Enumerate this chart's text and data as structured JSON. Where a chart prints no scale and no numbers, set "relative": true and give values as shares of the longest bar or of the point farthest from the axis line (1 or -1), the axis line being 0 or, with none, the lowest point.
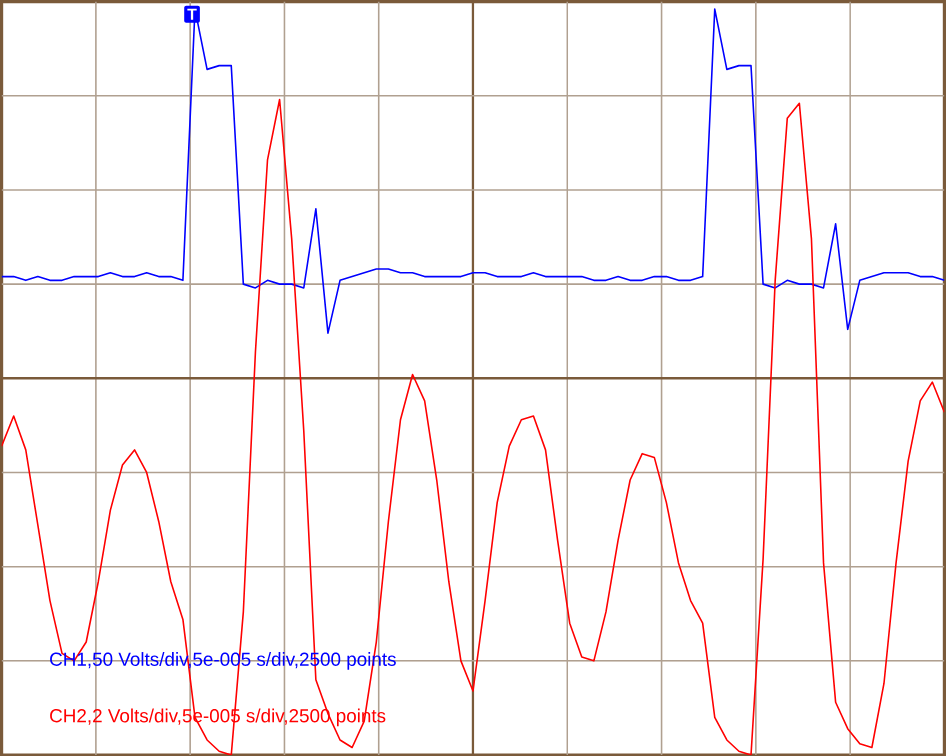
{
  "chart_data": {
    "type": "line",
    "relative": true,
    "grid": true,
    "categories": [
      null,
      null,
      null,
      null,
      null,
      null,
      null,
      null,
      null,
      null,
      null,
      null,
      null,
      null,
      null,
      null,
      null,
      null,
      null,
      null,
      null,
      null,
      null,
      null,
      null,
      null,
      null,
      null,
      null,
      null,
      null,
      null,
      null,
      null,
      null,
      null,
      null,
      null,
      null,
      null,
      null,
      null,
      null,
      null,
      null,
      null,
      null,
      null,
      null,
      null,
      null,
      null,
      null,
      null,
      null,
      null,
      null,
      null,
      null,
      null,
      null,
      null,
      null,
      null,
      null,
      null,
      null,
      null,
      null,
      null,
      null,
      null,
      null,
      null,
      null,
      null,
      null,
      null,
      null
    ],
    "series": [
      {
        "name": "CH1,50 Volts/div,5e-005 s/div,2500 points",
        "color": "#0000ff",
        "values": [
          0.27,
          0.27,
          0.26,
          0.27,
          0.26,
          0.26,
          0.27,
          0.27,
          0.27,
          0.28,
          0.27,
          0.27,
          0.28,
          0.27,
          0.27,
          0.26,
          0.98,
          0.82,
          0.83,
          0.83,
          0.25,
          0.24,
          0.26,
          0.25,
          0.25,
          0.24,
          0.45,
          0.12,
          0.26,
          0.27,
          0.28,
          0.29,
          0.29,
          0.28,
          0.28,
          0.27,
          0.27,
          0.27,
          0.27,
          0.28,
          0.28,
          0.27,
          0.27,
          0.27,
          0.28,
          0.27,
          0.27,
          0.27,
          0.27,
          0.26,
          0.26,
          0.27,
          0.26,
          0.26,
          0.27,
          0.27,
          0.26,
          0.26,
          0.27,
          0.98,
          0.82,
          0.83,
          0.83,
          0.25,
          0.24,
          0.26,
          0.25,
          0.25,
          0.24,
          0.41,
          0.13,
          0.26,
          0.27,
          0.28,
          0.28,
          0.28,
          0.27,
          0.27,
          0.26
        ]
      },
      {
        "name": "CH2,2 Volts/div,5e-005 s/div,2500 points",
        "color": "#ff0000",
        "values": [
          -0.18,
          -0.1,
          -0.19,
          -0.39,
          -0.59,
          -0.73,
          -0.75,
          -0.7,
          -0.54,
          -0.35,
          -0.23,
          -0.19,
          -0.25,
          -0.38,
          -0.54,
          -0.64,
          -0.9,
          -0.96,
          -0.99,
          -1.0,
          -0.62,
          0.07,
          0.58,
          0.74,
          0.37,
          -0.14,
          -0.8,
          -0.89,
          -0.96,
          -0.98,
          -0.91,
          -0.7,
          -0.38,
          -0.11,
          0.01,
          -0.06,
          -0.27,
          -0.54,
          -0.75,
          -0.83,
          -0.59,
          -0.33,
          -0.18,
          -0.11,
          -0.1,
          -0.19,
          -0.43,
          -0.65,
          -0.74,
          -0.75,
          -0.62,
          -0.43,
          -0.27,
          -0.2,
          -0.21,
          -0.33,
          -0.49,
          -0.59,
          -0.65,
          -0.9,
          -0.96,
          -0.99,
          -1.0,
          -0.48,
          0.26,
          0.69,
          0.73,
          0.37,
          -0.49,
          -0.86,
          -0.93,
          -0.97,
          -0.98,
          -0.81,
          -0.49,
          -0.22,
          -0.06,
          -0.01,
          -0.09
        ]
      }
    ],
    "ref_lines": [
      {
        "axis": "y",
        "value": 0,
        "color": "#7a5a3a"
      }
    ],
    "annotations": [
      "T"
    ]
  }
}
